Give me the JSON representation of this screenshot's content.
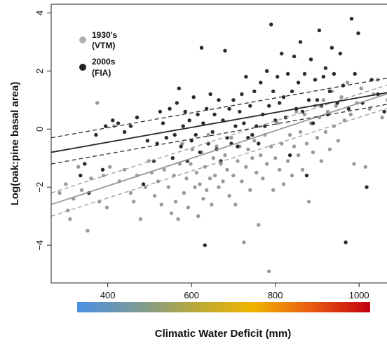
{
  "chart_data": {
    "type": "scatter",
    "xlabel": "Climatic Water Deficit (mm)",
    "ylabel": "Log(oak:pine basal area)",
    "xlim": [
      265,
      1085
    ],
    "ylim": [
      -5.3,
      4.3
    ],
    "xticks": [
      400,
      600,
      800,
      1000
    ],
    "yticks": [
      -4,
      -2,
      0,
      2,
      4
    ],
    "xtick_labels": [
      "400",
      "600",
      "800",
      "1000"
    ],
    "ytick_labels": [
      "−4",
      "−2",
      "0",
      "2",
      "4"
    ],
    "grid": false,
    "legend_position": "top-left",
    "colorbar": {
      "range": [
        315,
        1070
      ],
      "stops": [
        "#4a90e2",
        "#7a9a9a",
        "#b7a83a",
        "#f0b400",
        "#e85a10",
        "#c40010"
      ]
    },
    "series": [
      {
        "name": "1930's (VTM)",
        "name_line1": "1930's",
        "name_line2": "(VTM)",
        "color": "#9a9a9a",
        "fit": {
          "x": [
            265,
            1085
          ],
          "y": [
            -2.6,
            1.3
          ]
        },
        "ci_lower": {
          "x": [
            265,
            1085
          ],
          "y": [
            -3.0,
            0.8
          ]
        },
        "ci_upper": {
          "x": [
            265,
            1085
          ],
          "y": [
            -2.2,
            1.6
          ]
        },
        "points": [
          [
            285,
            -2.2
          ],
          [
            300,
            -1.9
          ],
          [
            305,
            -2.8
          ],
          [
            310,
            -3.1
          ],
          [
            318,
            -2.4
          ],
          [
            330,
            -1.3
          ],
          [
            338,
            -2.1
          ],
          [
            352,
            -3.5
          ],
          [
            360,
            -1.7
          ],
          [
            375,
            0.9
          ],
          [
            380,
            -2.5
          ],
          [
            390,
            -1.6
          ],
          [
            398,
            -2.7
          ],
          [
            405,
            -1.3
          ],
          [
            415,
            0.1
          ],
          [
            428,
            -1.8
          ],
          [
            440,
            -1.4
          ],
          [
            455,
            -2.2
          ],
          [
            462,
            -2.5
          ],
          [
            470,
            -1.6
          ],
          [
            478,
            -3.1
          ],
          [
            490,
            -2.0
          ],
          [
            498,
            -1.1
          ],
          [
            505,
            -1.5
          ],
          [
            512,
            -2.3
          ],
          [
            520,
            -1.8
          ],
          [
            528,
            -2.6
          ],
          [
            535,
            -1.4
          ],
          [
            545,
            -2.0
          ],
          [
            552,
            -2.9
          ],
          [
            558,
            -1.6
          ],
          [
            562,
            -2.5
          ],
          [
            568,
            -3.1
          ],
          [
            572,
            -1.2
          ],
          [
            578,
            -0.5
          ],
          [
            582,
            -2.2
          ],
          [
            588,
            -1.7
          ],
          [
            592,
            -2.7
          ],
          [
            598,
            -1.2
          ],
          [
            602,
            -0.7
          ],
          [
            608,
            -2.0
          ],
          [
            612,
            -1.5
          ],
          [
            616,
            -3.0
          ],
          [
            620,
            -1.9
          ],
          [
            624,
            -0.8
          ],
          [
            628,
            -2.4
          ],
          [
            632,
            -1.3
          ],
          [
            636,
            -2.1
          ],
          [
            640,
            -0.2
          ],
          [
            644,
            -1.7
          ],
          [
            648,
            -2.6
          ],
          [
            652,
            -1.0
          ],
          [
            656,
            -1.6
          ],
          [
            660,
            -0.6
          ],
          [
            665,
            -2.0
          ],
          [
            670,
            -1.2
          ],
          [
            675,
            -1.8
          ],
          [
            680,
            -0.9
          ],
          [
            685,
            -1.4
          ],
          [
            690,
            -2.3
          ],
          [
            695,
            -0.3
          ],
          [
            700,
            -1.6
          ],
          [
            705,
            -2.6
          ],
          [
            710,
            -1.1
          ],
          [
            715,
            -0.6
          ],
          [
            720,
            -1.8
          ],
          [
            725,
            -3.9
          ],
          [
            730,
            -1.3
          ],
          [
            735,
            -0.7
          ],
          [
            740,
            -2.1
          ],
          [
            745,
            -1.0
          ],
          [
            750,
            -0.4
          ],
          [
            755,
            -1.5
          ],
          [
            760,
            -3.3
          ],
          [
            765,
            -0.9
          ],
          [
            770,
            -1.7
          ],
          [
            775,
            -0.2
          ],
          [
            780,
            -1.2
          ],
          [
            785,
            -4.9
          ],
          [
            790,
            -0.6
          ],
          [
            795,
            -2.1
          ],
          [
            800,
            -1.0
          ],
          [
            805,
            0.2
          ],
          [
            810,
            -1.4
          ],
          [
            815,
            -0.5
          ],
          [
            820,
            -1.9
          ],
          [
            825,
            0.4
          ],
          [
            830,
            -1.1
          ],
          [
            835,
            -0.2
          ],
          [
            840,
            -1.6
          ],
          [
            845,
            -0.6
          ],
          [
            850,
            0.6
          ],
          [
            855,
            -0.9
          ],
          [
            860,
            -0.1
          ],
          [
            865,
            -1.4
          ],
          [
            870,
            0.5
          ],
          [
            875,
            -0.5
          ],
          [
            880,
            -2.5
          ],
          [
            885,
            0.2
          ],
          [
            890,
            -0.8
          ],
          [
            895,
            0.8
          ],
          [
            900,
            -0.3
          ],
          [
            905,
            0.4
          ],
          [
            910,
            -1.1
          ],
          [
            915,
            1.0
          ],
          [
            920,
            -0.1
          ],
          [
            925,
            0.6
          ],
          [
            930,
            -0.7
          ],
          [
            935,
            1.3
          ],
          [
            940,
            0.1
          ],
          [
            945,
            0.8
          ],
          [
            950,
            -0.4
          ],
          [
            958,
            1.1
          ],
          [
            965,
            0.3
          ],
          [
            972,
            1.6
          ],
          [
            980,
            0.5
          ],
          [
            988,
            -1.2
          ],
          [
            995,
            0.9
          ],
          [
            1005,
            1.4
          ],
          [
            1015,
            -1.3
          ],
          [
            1025,
            0.7
          ],
          [
            1035,
            1.2
          ],
          [
            1045,
            1.7
          ],
          [
            1055,
            0.4
          ],
          [
            1068,
            1.0
          ],
          [
            1075,
            0.8
          ],
          [
            1080,
            1.5
          ]
        ]
      },
      {
        "name": "2000s (FIA)",
        "name_line1": "2000s",
        "name_line2": "(FIA)",
        "color": "#2b2b2b",
        "fit": {
          "x": [
            265,
            1085
          ],
          "y": [
            -0.8,
            1.3
          ]
        },
        "ci_lower": {
          "x": [
            265,
            1085
          ],
          "y": [
            -1.2,
            0.9
          ]
        },
        "ci_upper": {
          "x": [
            265,
            1085
          ],
          "y": [
            -0.3,
            1.8
          ]
        },
        "points": [
          [
            335,
            -1.6
          ],
          [
            345,
            -1.2
          ],
          [
            355,
            -2.2
          ],
          [
            372,
            -0.2
          ],
          [
            388,
            -1.4
          ],
          [
            395,
            0.1
          ],
          [
            412,
            0.3
          ],
          [
            425,
            0.2
          ],
          [
            440,
            -0.1
          ],
          [
            455,
            0.1
          ],
          [
            470,
            0.4
          ],
          [
            485,
            -1.9
          ],
          [
            495,
            -0.4
          ],
          [
            510,
            -1.1
          ],
          [
            518,
            -0.5
          ],
          [
            525,
            0.6
          ],
          [
            532,
            0.2
          ],
          [
            540,
            -0.3
          ],
          [
            548,
            0.7
          ],
          [
            555,
            -1.0
          ],
          [
            560,
            -0.2
          ],
          [
            565,
            0.9
          ],
          [
            570,
            1.4
          ],
          [
            575,
            -0.6
          ],
          [
            580,
            0.1
          ],
          [
            585,
            0.6
          ],
          [
            590,
            -1.1
          ],
          [
            595,
            0.3
          ],
          [
            600,
            -0.4
          ],
          [
            605,
            1.1
          ],
          [
            610,
            -0.2
          ],
          [
            615,
            0.5
          ],
          [
            620,
            -0.8
          ],
          [
            624,
            2.8
          ],
          [
            628,
            0.2
          ],
          [
            632,
            -4.0
          ],
          [
            636,
            0.7
          ],
          [
            640,
            -0.5
          ],
          [
            645,
            1.2
          ],
          [
            650,
            -0.1
          ],
          [
            655,
            0.5
          ],
          [
            660,
            -0.7
          ],
          [
            665,
            1.0
          ],
          [
            670,
            -1.1
          ],
          [
            675,
            0.3
          ],
          [
            680,
            2.7
          ],
          [
            685,
            -0.3
          ],
          [
            690,
            0.7
          ],
          [
            695,
            -0.5
          ],
          [
            700,
            1.0
          ],
          [
            705,
            0.1
          ],
          [
            710,
            -0.6
          ],
          [
            715,
            0.6
          ],
          [
            720,
            1.2
          ],
          [
            725,
            0.2
          ],
          [
            730,
            1.8
          ],
          [
            735,
            -0.3
          ],
          [
            740,
            0.8
          ],
          [
            745,
            -0.2
          ],
          [
            750,
            1.3
          ],
          [
            755,
            0.1
          ],
          [
            760,
            -0.5
          ],
          [
            765,
            1.6
          ],
          [
            770,
            0.5
          ],
          [
            775,
            0.1
          ],
          [
            780,
            2.0
          ],
          [
            785,
            0.8
          ],
          [
            790,
            3.6
          ],
          [
            795,
            1.3
          ],
          [
            800,
            0.3
          ],
          [
            805,
            1.8
          ],
          [
            810,
            0.9
          ],
          [
            815,
            2.6
          ],
          [
            820,
            1.1
          ],
          [
            825,
            0.4
          ],
          [
            830,
            1.9
          ],
          [
            835,
            -0.9
          ],
          [
            840,
            1.3
          ],
          [
            845,
            2.5
          ],
          [
            850,
            0.7
          ],
          [
            855,
            1.6
          ],
          [
            860,
            3.0
          ],
          [
            865,
            0.6
          ],
          [
            870,
            1.9
          ],
          [
            875,
            -1.6
          ],
          [
            880,
            1.0
          ],
          [
            885,
            2.4
          ],
          [
            890,
            0.2
          ],
          [
            895,
            1.7
          ],
          [
            900,
            1.0
          ],
          [
            905,
            3.4
          ],
          [
            910,
            0.8
          ],
          [
            915,
            1.8
          ],
          [
            920,
            2.1
          ],
          [
            925,
            0.5
          ],
          [
            930,
            1.3
          ],
          [
            935,
            2.8
          ],
          [
            940,
            1.9
          ],
          [
            948,
            0.9
          ],
          [
            955,
            2.6
          ],
          [
            962,
            1.5
          ],
          [
            968,
            -3.9
          ],
          [
            975,
            0.7
          ],
          [
            982,
            3.8
          ],
          [
            990,
            1.9
          ],
          [
            998,
            3.3
          ],
          [
            1008,
            0.9
          ],
          [
            1018,
            -2.0
          ],
          [
            1030,
            1.7
          ],
          [
            1045,
            1.2
          ],
          [
            1060,
            0.6
          ]
        ]
      }
    ]
  }
}
